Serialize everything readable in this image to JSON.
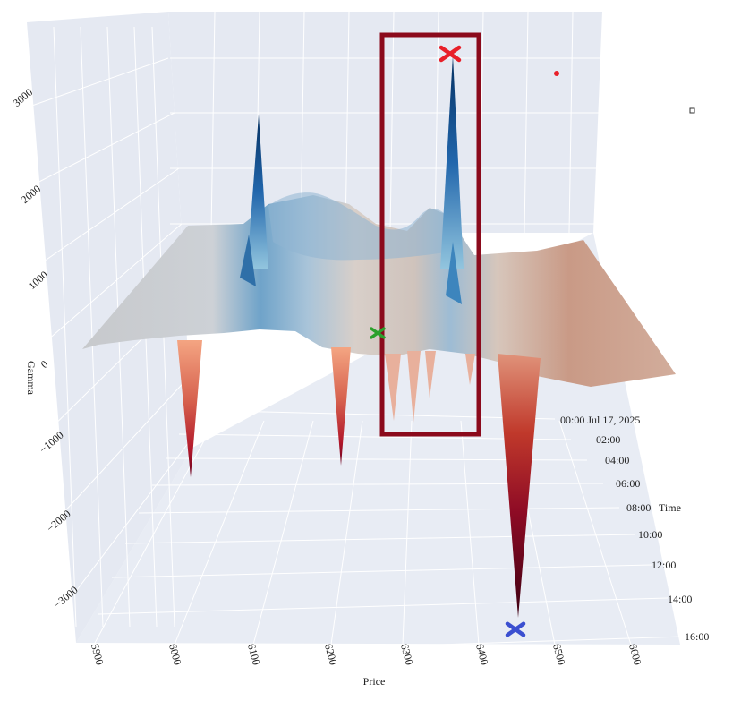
{
  "chart_data": {
    "type": "surface",
    "title": "",
    "colorscale": [
      "#67001f",
      "#b2182b",
      "#d6604d",
      "#f4a582",
      "#fddbc7",
      "#f7f7f7",
      "#d1e5f0",
      "#92c5de",
      "#4393c3",
      "#2166ac",
      "#053061"
    ],
    "x": {
      "label": "Price",
      "ticks": [
        "5900",
        "6000",
        "6100",
        "6200",
        "6300",
        "6400",
        "6500",
        "6600"
      ],
      "range": [
        5880,
        6620
      ]
    },
    "y": {
      "label": "Time",
      "ticks": [
        "00:00 Jul 17, 2025",
        "02:00",
        "04:00",
        "06:00",
        "08:00",
        "10:00",
        "12:00",
        "14:00",
        "16:00"
      ],
      "range": [
        "2025-07-17 00:00",
        "2025-07-17 16:00"
      ]
    },
    "z": {
      "label": "Gamma",
      "ticks": [
        "−3000",
        "−2000",
        "−1000",
        "0",
        "1000",
        "2000",
        "3000"
      ],
      "range": [
        -3500,
        3700
      ]
    },
    "grid": true,
    "peaks": [
      {
        "price": 6100,
        "gamma": 2750
      },
      {
        "price": 6370,
        "gamma": 3400
      },
      {
        "price": 6050,
        "gamma": -1300
      },
      {
        "price": 6215,
        "gamma": -1200
      },
      {
        "price": 6440,
        "gamma": -3300
      }
    ],
    "markers": [
      {
        "name": "max gamma",
        "symbol": "x",
        "color": "#e8202a",
        "price": 6370,
        "gamma": 3420
      },
      {
        "name": "min gamma",
        "symbol": "x",
        "color": "#3b4fd0",
        "price": 6445,
        "gamma": -3300
      },
      {
        "name": "spot",
        "symbol": "x",
        "color": "#2ca02c",
        "price": 6275,
        "gamma": 300
      }
    ],
    "highlight_box": {
      "color": "#8b0a1c"
    },
    "legend_marker_color": "#e8202a"
  }
}
